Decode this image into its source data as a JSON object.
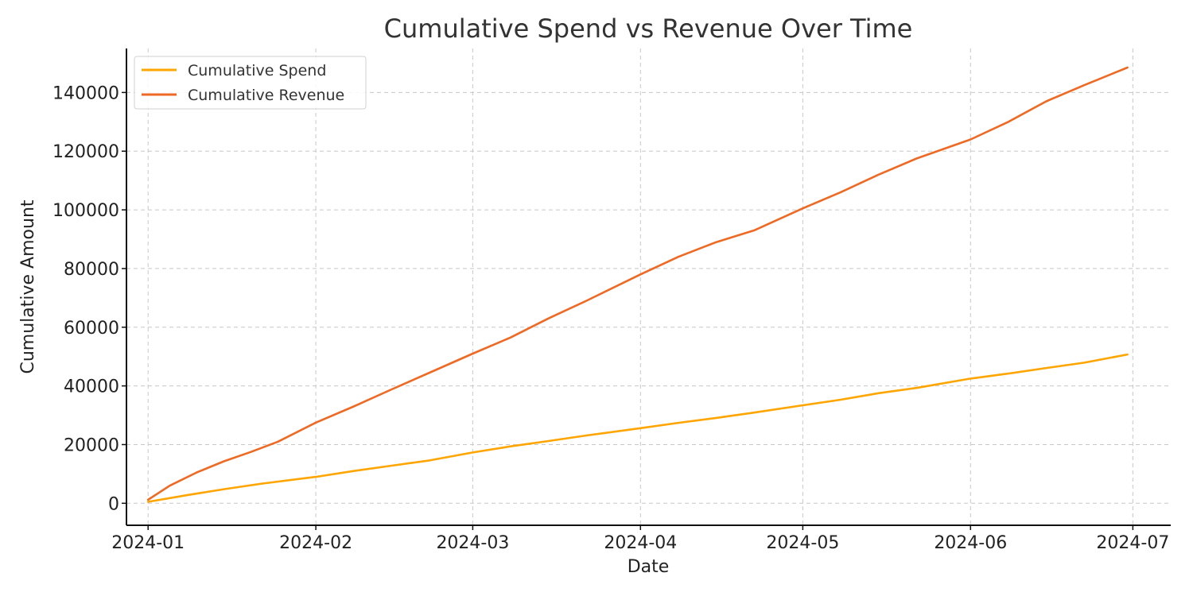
{
  "chart_data": {
    "type": "line",
    "title": "Cumulative Spend vs Revenue Over Time",
    "xlabel": "Date",
    "ylabel": "Cumulative Amount",
    "x_range": [
      "2023-12-28",
      "2024-07-08"
    ],
    "ylim": [
      -7500,
      155000
    ],
    "x_ticks": [
      "2024-01",
      "2024-02",
      "2024-03",
      "2024-04",
      "2024-05",
      "2024-06",
      "2024-07"
    ],
    "y_ticks": [
      0,
      20000,
      40000,
      60000,
      80000,
      100000,
      120000,
      140000
    ],
    "grid": true,
    "legend_position": "upper left",
    "series": [
      {
        "name": "Cumulative Spend",
        "color": "#FFA500",
        "points": [
          [
            "2024-01-01",
            500
          ],
          [
            "2024-01-08",
            2700
          ],
          [
            "2024-01-15",
            4800
          ],
          [
            "2024-01-22",
            6700
          ],
          [
            "2024-02-01",
            9000
          ],
          [
            "2024-02-08",
            11000
          ],
          [
            "2024-02-15",
            12800
          ],
          [
            "2024-02-22",
            14600
          ],
          [
            "2024-03-01",
            17300
          ],
          [
            "2024-03-08",
            19400
          ],
          [
            "2024-03-15",
            21200
          ],
          [
            "2024-03-22",
            23100
          ],
          [
            "2024-04-01",
            25600
          ],
          [
            "2024-04-08",
            27400
          ],
          [
            "2024-04-15",
            29100
          ],
          [
            "2024-04-22",
            30900
          ],
          [
            "2024-05-01",
            33400
          ],
          [
            "2024-05-08",
            35300
          ],
          [
            "2024-05-15",
            37500
          ],
          [
            "2024-05-22",
            39300
          ],
          [
            "2024-06-01",
            42500
          ],
          [
            "2024-06-08",
            44200
          ],
          [
            "2024-06-15",
            46100
          ],
          [
            "2024-06-22",
            47900
          ],
          [
            "2024-06-30",
            50700
          ]
        ]
      },
      {
        "name": "Cumulative Revenue",
        "color": "#EE6A24",
        "points": [
          [
            "2024-01-01",
            1200
          ],
          [
            "2024-01-05",
            6000
          ],
          [
            "2024-01-10",
            10500
          ],
          [
            "2024-01-15",
            14300
          ],
          [
            "2024-01-20",
            17500
          ],
          [
            "2024-01-25",
            21000
          ],
          [
            "2024-02-01",
            27500
          ],
          [
            "2024-02-08",
            33000
          ],
          [
            "2024-02-15",
            38800
          ],
          [
            "2024-02-22",
            44500
          ],
          [
            "2024-03-01",
            51000
          ],
          [
            "2024-03-08",
            56500
          ],
          [
            "2024-03-15",
            63000
          ],
          [
            "2024-03-22",
            69000
          ],
          [
            "2024-04-01",
            78000
          ],
          [
            "2024-04-08",
            84000
          ],
          [
            "2024-04-15",
            89000
          ],
          [
            "2024-04-22",
            93000
          ],
          [
            "2024-05-01",
            100500
          ],
          [
            "2024-05-08",
            106000
          ],
          [
            "2024-05-15",
            112000
          ],
          [
            "2024-05-22",
            117500
          ],
          [
            "2024-06-01",
            124000
          ],
          [
            "2024-06-08",
            130000
          ],
          [
            "2024-06-15",
            137000
          ],
          [
            "2024-06-22",
            142500
          ],
          [
            "2024-06-30",
            148500
          ]
        ]
      }
    ]
  }
}
